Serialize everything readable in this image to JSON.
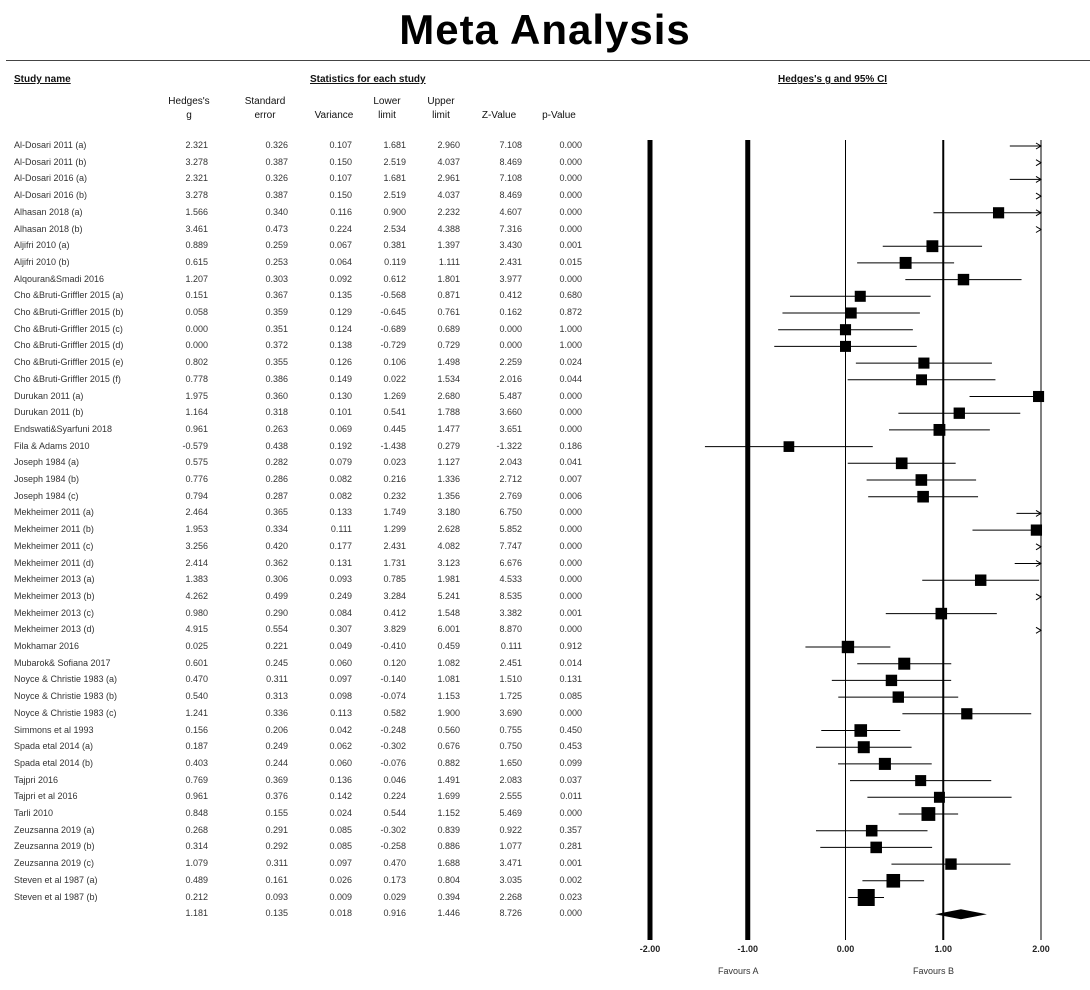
{
  "title": "Meta Analysis",
  "headers": {
    "study_name": "Study name",
    "statistics": "Statistics for each study",
    "plot": "Hedges's g and 95% CI",
    "col_g": [
      "Hedges's",
      "g"
    ],
    "col_se": [
      "Standard",
      "error"
    ],
    "col_var": [
      "",
      "Variance"
    ],
    "col_lower": [
      "Lower",
      "limit"
    ],
    "col_upper": [
      "Upper",
      "limit"
    ],
    "col_z": [
      "",
      "Z-Value"
    ],
    "col_p": [
      "",
      "p-Value"
    ]
  },
  "rows": [
    {
      "study": "Al-Dosari 2011 (a)",
      "g": "2.321",
      "se": "0.326",
      "var": "0.107",
      "lower": "1.681",
      "upper": "2.960",
      "z": "7.108",
      "p": "0.000"
    },
    {
      "study": "Al-Dosari 2011 (b)",
      "g": "3.278",
      "se": "0.387",
      "var": "0.150",
      "lower": "2.519",
      "upper": "4.037",
      "z": "8.469",
      "p": "0.000"
    },
    {
      "study": "Al-Dosari 2016 (a)",
      "g": "2.321",
      "se": "0.326",
      "var": "0.107",
      "lower": "1.681",
      "upper": "2.961",
      "z": "7.108",
      "p": "0.000"
    },
    {
      "study": "Al-Dosari 2016 (b)",
      "g": "3.278",
      "se": "0.387",
      "var": "0.150",
      "lower": "2.519",
      "upper": "4.037",
      "z": "8.469",
      "p": "0.000"
    },
    {
      "study": "Alhasan 2018 (a)",
      "g": "1.566",
      "se": "0.340",
      "var": "0.116",
      "lower": "0.900",
      "upper": "2.232",
      "z": "4.607",
      "p": "0.000"
    },
    {
      "study": "Alhasan 2018 (b)",
      "g": "3.461",
      "se": "0.473",
      "var": "0.224",
      "lower": "2.534",
      "upper": "4.388",
      "z": "7.316",
      "p": "0.000"
    },
    {
      "study": "Aljifri 2010 (a)",
      "g": "0.889",
      "se": "0.259",
      "var": "0.067",
      "lower": "0.381",
      "upper": "1.397",
      "z": "3.430",
      "p": "0.001"
    },
    {
      "study": "Aljifri 2010 (b)",
      "g": "0.615",
      "se": "0.253",
      "var": "0.064",
      "lower": "0.119",
      "upper": "1.111",
      "z": "2.431",
      "p": "0.015"
    },
    {
      "study": "Alqouran&Smadi 2016",
      "g": "1.207",
      "se": "0.303",
      "var": "0.092",
      "lower": "0.612",
      "upper": "1.801",
      "z": "3.977",
      "p": "0.000"
    },
    {
      "study": "Cho &Bruti-Griffler 2015 (a)",
      "g": "0.151",
      "se": "0.367",
      "var": "0.135",
      "lower": "-0.568",
      "upper": "0.871",
      "z": "0.412",
      "p": "0.680"
    },
    {
      "study": "Cho &Bruti-Griffler 2015 (b)",
      "g": "0.058",
      "se": "0.359",
      "var": "0.129",
      "lower": "-0.645",
      "upper": "0.761",
      "z": "0.162",
      "p": "0.872"
    },
    {
      "study": "Cho &Bruti-Griffler 2015 (c)",
      "g": "0.000",
      "se": "0.351",
      "var": "0.124",
      "lower": "-0.689",
      "upper": "0.689",
      "z": "0.000",
      "p": "1.000"
    },
    {
      "study": "Cho &Bruti-Griffler 2015 (d)",
      "g": "0.000",
      "se": "0.372",
      "var": "0.138",
      "lower": "-0.729",
      "upper": "0.729",
      "z": "0.000",
      "p": "1.000"
    },
    {
      "study": "Cho &Bruti-Griffler 2015 (e)",
      "g": "0.802",
      "se": "0.355",
      "var": "0.126",
      "lower": "0.106",
      "upper": "1.498",
      "z": "2.259",
      "p": "0.024"
    },
    {
      "study": "Cho &Bruti-Griffler 2015 (f)",
      "g": "0.778",
      "se": "0.386",
      "var": "0.149",
      "lower": "0.022",
      "upper": "1.534",
      "z": "2.016",
      "p": "0.044"
    },
    {
      "study": "Durukan 2011 (a)",
      "g": "1.975",
      "se": "0.360",
      "var": "0.130",
      "lower": "1.269",
      "upper": "2.680",
      "z": "5.487",
      "p": "0.000"
    },
    {
      "study": "Durukan 2011 (b)",
      "g": "1.164",
      "se": "0.318",
      "var": "0.101",
      "lower": "0.541",
      "upper": "1.788",
      "z": "3.660",
      "p": "0.000"
    },
    {
      "study": "Endswati&Syarfuni 2018",
      "g": "0.961",
      "se": "0.263",
      "var": "0.069",
      "lower": "0.445",
      "upper": "1.477",
      "z": "3.651",
      "p": "0.000"
    },
    {
      "study": "Fila & Adams 2010",
      "g": "-0.579",
      "se": "0.438",
      "var": "0.192",
      "lower": "-1.438",
      "upper": "0.279",
      "z": "-1.322",
      "p": "0.186"
    },
    {
      "study": "Joseph 1984 (a)",
      "g": "0.575",
      "se": "0.282",
      "var": "0.079",
      "lower": "0.023",
      "upper": "1.127",
      "z": "2.043",
      "p": "0.041"
    },
    {
      "study": "Joseph 1984 (b)",
      "g": "0.776",
      "se": "0.286",
      "var": "0.082",
      "lower": "0.216",
      "upper": "1.336",
      "z": "2.712",
      "p": "0.007"
    },
    {
      "study": "Joseph 1984 (c)",
      "g": "0.794",
      "se": "0.287",
      "var": "0.082",
      "lower": "0.232",
      "upper": "1.356",
      "z": "2.769",
      "p": "0.006"
    },
    {
      "study": "Mekheimer 2011 (a)",
      "g": "2.464",
      "se": "0.365",
      "var": "0.133",
      "lower": "1.749",
      "upper": "3.180",
      "z": "6.750",
      "p": "0.000"
    },
    {
      "study": "Mekheimer 2011 (b)",
      "g": "1.953",
      "se": "0.334",
      "var": "0.111",
      "lower": "1.299",
      "upper": "2.628",
      "z": "5.852",
      "p": "0.000"
    },
    {
      "study": "Mekheimer 2011 (c)",
      "g": "3.256",
      "se": "0.420",
      "var": "0.177",
      "lower": "2.431",
      "upper": "4.082",
      "z": "7.747",
      "p": "0.000"
    },
    {
      "study": "Mekheimer 2011 (d)",
      "g": "2.414",
      "se": "0.362",
      "var": "0.131",
      "lower": "1.731",
      "upper": "3.123",
      "z": "6.676",
      "p": "0.000"
    },
    {
      "study": "Mekheimer 2013 (a)",
      "g": "1.383",
      "se": "0.306",
      "var": "0.093",
      "lower": "0.785",
      "upper": "1.981",
      "z": "4.533",
      "p": "0.000"
    },
    {
      "study": "Mekheimer 2013 (b)",
      "g": "4.262",
      "se": "0.499",
      "var": "0.249",
      "lower": "3.284",
      "upper": "5.241",
      "z": "8.535",
      "p": "0.000"
    },
    {
      "study": "Mekheimer 2013 (c)",
      "g": "0.980",
      "se": "0.290",
      "var": "0.084",
      "lower": "0.412",
      "upper": "1.548",
      "z": "3.382",
      "p": "0.001"
    },
    {
      "study": "Mekheimer 2013 (d)",
      "g": "4.915",
      "se": "0.554",
      "var": "0.307",
      "lower": "3.829",
      "upper": "6.001",
      "z": "8.870",
      "p": "0.000"
    },
    {
      "study": "Mokhamar 2016",
      "g": "0.025",
      "se": "0.221",
      "var": "0.049",
      "lower": "-0.410",
      "upper": "0.459",
      "z": "0.111",
      "p": "0.912"
    },
    {
      "study": "Mubarok& Sofiana 2017",
      "g": "0.601",
      "se": "0.245",
      "var": "0.060",
      "lower": "0.120",
      "upper": "1.082",
      "z": "2.451",
      "p": "0.014"
    },
    {
      "study": "Noyce & Christie 1983 (a)",
      "g": "0.470",
      "se": "0.311",
      "var": "0.097",
      "lower": "-0.140",
      "upper": "1.081",
      "z": "1.510",
      "p": "0.131"
    },
    {
      "study": "Noyce & Christie 1983 (b)",
      "g": "0.540",
      "se": "0.313",
      "var": "0.098",
      "lower": "-0.074",
      "upper": "1.153",
      "z": "1.725",
      "p": "0.085"
    },
    {
      "study": "Noyce & Christie 1983 (c)",
      "g": "1.241",
      "se": "0.336",
      "var": "0.113",
      "lower": "0.582",
      "upper": "1.900",
      "z": "3.690",
      "p": "0.000"
    },
    {
      "study": "Simmons et al 1993",
      "g": "0.156",
      "se": "0.206",
      "var": "0.042",
      "lower": "-0.248",
      "upper": "0.560",
      "z": "0.755",
      "p": "0.450"
    },
    {
      "study": "Spada etal 2014 (a)",
      "g": "0.187",
      "se": "0.249",
      "var": "0.062",
      "lower": "-0.302",
      "upper": "0.676",
      "z": "0.750",
      "p": "0.453"
    },
    {
      "study": "Spada etal 2014 (b)",
      "g": "0.403",
      "se": "0.244",
      "var": "0.060",
      "lower": "-0.076",
      "upper": "0.882",
      "z": "1.650",
      "p": "0.099"
    },
    {
      "study": "Tajpri 2016",
      "g": "0.769",
      "se": "0.369",
      "var": "0.136",
      "lower": "0.046",
      "upper": "1.491",
      "z": "2.083",
      "p": "0.037"
    },
    {
      "study": "Tajpri et al 2016",
      "g": "0.961",
      "se": "0.376",
      "var": "0.142",
      "lower": "0.224",
      "upper": "1.699",
      "z": "2.555",
      "p": "0.011"
    },
    {
      "study": "Tarli 2010",
      "g": "0.848",
      "se": "0.155",
      "var": "0.024",
      "lower": "0.544",
      "upper": "1.152",
      "z": "5.469",
      "p": "0.000"
    },
    {
      "study": "Zeuzsanna 2019 (a)",
      "g": "0.268",
      "se": "0.291",
      "var": "0.085",
      "lower": "-0.302",
      "upper": "0.839",
      "z": "0.922",
      "p": "0.357"
    },
    {
      "study": "Zeuzsanna 2019 (b)",
      "g": "0.314",
      "se": "0.292",
      "var": "0.085",
      "lower": "-0.258",
      "upper": "0.886",
      "z": "1.077",
      "p": "0.281"
    },
    {
      "study": "Zeuzsanna 2019 (c)",
      "g": "1.079",
      "se": "0.311",
      "var": "0.097",
      "lower": "0.470",
      "upper": "1.688",
      "z": "3.471",
      "p": "0.001"
    },
    {
      "study": "Steven et al 1987 (a)",
      "g": "0.489",
      "se": "0.161",
      "var": "0.026",
      "lower": "0.173",
      "upper": "0.804",
      "z": "3.035",
      "p": "0.002"
    },
    {
      "study": "Steven et al 1987 (b)",
      "g": "0.212",
      "se": "0.093",
      "var": "0.009",
      "lower": "0.029",
      "upper": "0.394",
      "z": "2.268",
      "p": "0.023"
    },
    {
      "study": "",
      "g": "1.181",
      "se": "0.135",
      "var": "0.018",
      "lower": "0.916",
      "upper": "1.446",
      "z": "8.726",
      "p": "0.000"
    }
  ],
  "footer": {
    "favours_a": "Favours A",
    "favours_b": "Favours B"
  },
  "chart_data": {
    "type": "forest",
    "title": "Meta Analysis",
    "xlabel": "Hedges's g and 95% CI",
    "xlim": [
      -2,
      2
    ],
    "xticks": [
      "-2.00",
      "-1.00",
      "0.00",
      "1.00",
      "2.00"
    ],
    "series": [
      {
        "name": "Hedges's g",
        "values": [
          2.321,
          3.278,
          2.321,
          3.278,
          1.566,
          3.461,
          0.889,
          0.615,
          1.207,
          0.151,
          0.058,
          0.0,
          0.0,
          0.802,
          0.778,
          1.975,
          1.164,
          0.961,
          -0.579,
          0.575,
          0.776,
          0.794,
          2.464,
          1.953,
          3.256,
          2.414,
          1.383,
          4.262,
          0.98,
          4.915,
          0.025,
          0.601,
          0.47,
          0.54,
          1.241,
          0.156,
          0.187,
          0.403,
          0.769,
          0.961,
          0.848,
          0.268,
          0.314,
          1.079,
          0.489,
          0.212
        ]
      },
      {
        "name": "Lower limit",
        "values": [
          1.681,
          2.519,
          1.681,
          2.519,
          0.9,
          2.534,
          0.381,
          0.119,
          0.612,
          -0.568,
          -0.645,
          -0.689,
          -0.729,
          0.106,
          0.022,
          1.269,
          0.541,
          0.445,
          -1.438,
          0.023,
          0.216,
          0.232,
          1.749,
          1.299,
          2.431,
          1.731,
          0.785,
          3.284,
          0.412,
          3.829,
          -0.41,
          0.12,
          -0.14,
          -0.074,
          0.582,
          -0.248,
          -0.302,
          -0.076,
          0.046,
          0.224,
          0.544,
          -0.302,
          -0.258,
          0.47,
          0.173,
          0.029
        ]
      },
      {
        "name": "Upper limit",
        "values": [
          2.96,
          4.037,
          2.961,
          4.037,
          2.232,
          4.388,
          1.397,
          1.111,
          1.801,
          0.871,
          0.761,
          0.689,
          0.729,
          1.498,
          1.534,
          2.68,
          1.788,
          1.477,
          0.279,
          1.127,
          1.336,
          1.356,
          3.18,
          2.628,
          4.082,
          3.123,
          1.981,
          5.241,
          1.548,
          6.001,
          0.459,
          1.082,
          1.081,
          1.153,
          1.9,
          0.56,
          0.676,
          0.882,
          1.491,
          1.699,
          1.152,
          0.839,
          0.886,
          1.688,
          0.804,
          0.394
        ]
      },
      {
        "name": "Standard error",
        "values": [
          0.326,
          0.387,
          0.326,
          0.387,
          0.34,
          0.473,
          0.259,
          0.253,
          0.303,
          0.367,
          0.359,
          0.351,
          0.372,
          0.355,
          0.386,
          0.36,
          0.318,
          0.263,
          0.438,
          0.282,
          0.286,
          0.287,
          0.365,
          0.334,
          0.42,
          0.362,
          0.306,
          0.499,
          0.29,
          0.554,
          0.221,
          0.245,
          0.311,
          0.313,
          0.336,
          0.206,
          0.249,
          0.244,
          0.369,
          0.376,
          0.155,
          0.291,
          0.292,
          0.311,
          0.161,
          0.093
        ]
      }
    ],
    "summary": {
      "g": 1.181,
      "lower": 0.916,
      "upper": 1.446
    }
  }
}
